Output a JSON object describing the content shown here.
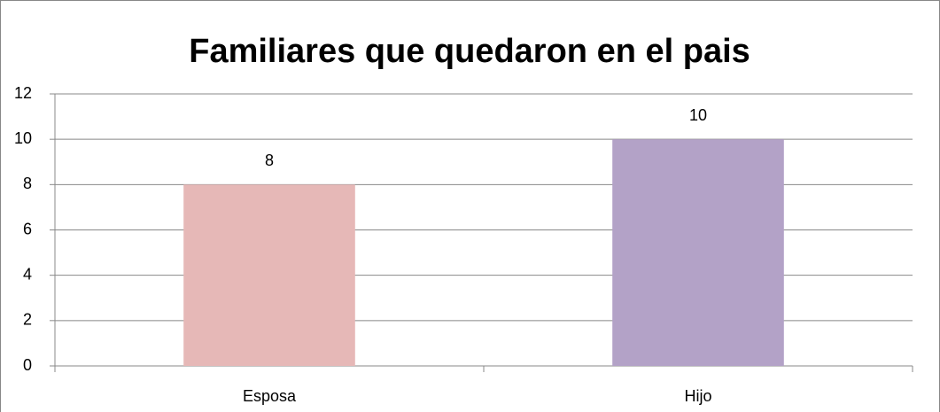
{
  "chart_data": {
    "type": "bar",
    "title": "Familiares que quedaron en el pais",
    "categories": [
      "Esposa",
      "Hijo"
    ],
    "values": [
      8,
      10
    ],
    "colors": [
      "#e6b8b7",
      "#b3a2c7"
    ],
    "ylim": [
      0,
      12
    ],
    "yticks": [
      0,
      2,
      4,
      6,
      8,
      10,
      12
    ],
    "grid": true
  }
}
